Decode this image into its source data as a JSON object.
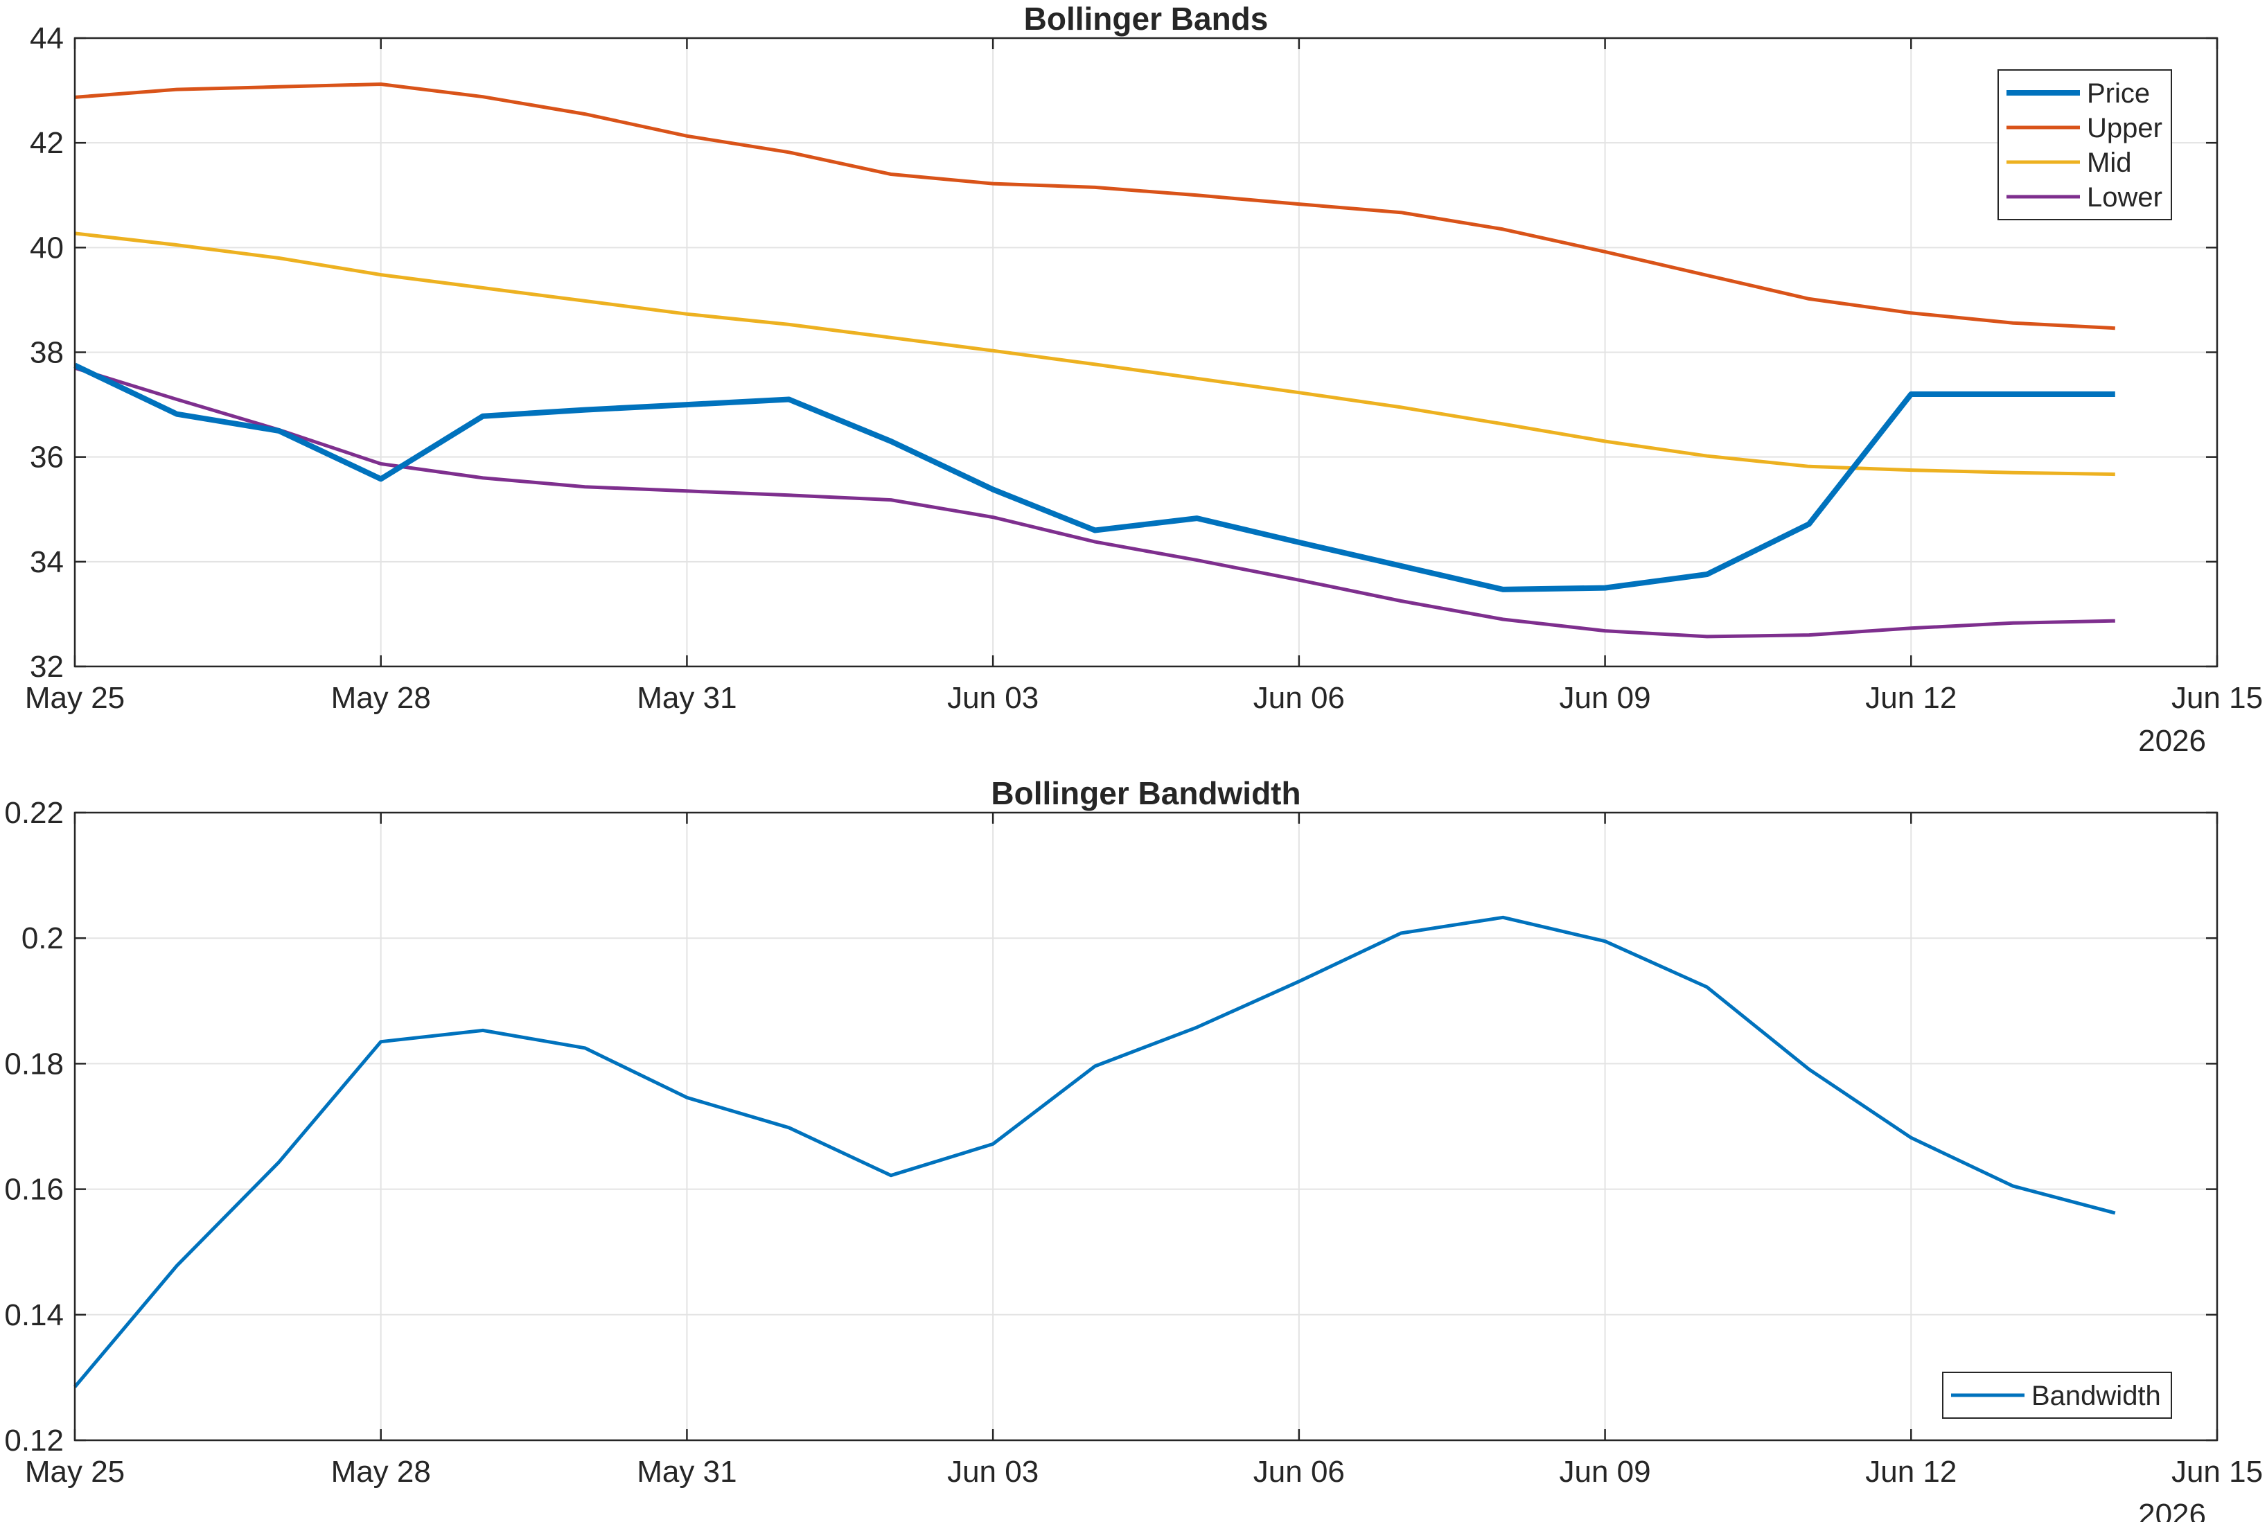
{
  "chart_data": [
    {
      "type": "line",
      "title": "Bollinger Bands",
      "xlabel": "",
      "ylabel": "",
      "x": [
        "May 25",
        "May 26",
        "May 27",
        "May 28",
        "May 29",
        "May 30",
        "May 31",
        "Jun 01",
        "Jun 02",
        "Jun 03",
        "Jun 04",
        "Jun 05",
        "Jun 06",
        "Jun 07",
        "Jun 08",
        "Jun 09",
        "Jun 10",
        "Jun 11",
        "Jun 12",
        "Jun 13",
        "Jun 14"
      ],
      "xlim": [
        "May 25",
        "Jun 15"
      ],
      "xticks": [
        "May 25",
        "May 28",
        "May 31",
        "Jun 03",
        "Jun 06",
        "Jun 09",
        "Jun 12",
        "Jun 15"
      ],
      "year_label": "2026",
      "ylim": [
        32,
        44
      ],
      "yticks": [
        "32",
        "34",
        "36",
        "38",
        "40",
        "42",
        "44"
      ],
      "grid": true,
      "legend_position": "top-right",
      "series": [
        {
          "name": "Price",
          "color": "#0072BD",
          "values": [
            37.75,
            36.82,
            36.5,
            35.58,
            36.78,
            36.9,
            37.0,
            37.1,
            36.3,
            35.38,
            34.6,
            34.83,
            34.37,
            33.92,
            33.47,
            33.5,
            33.76,
            34.72,
            37.2,
            37.2,
            37.2
          ]
        },
        {
          "name": "Upper",
          "color": "#D95319",
          "values": [
            42.87,
            43.02,
            43.07,
            43.12,
            42.88,
            42.55,
            42.13,
            41.82,
            41.4,
            41.22,
            41.15,
            41.0,
            40.83,
            40.67,
            40.35,
            39.92,
            39.47,
            39.02,
            38.75,
            38.56,
            38.46
          ]
        },
        {
          "name": "Mid",
          "color": "#EDB120",
          "values": [
            40.27,
            40.05,
            39.8,
            39.48,
            39.23,
            38.98,
            38.73,
            38.53,
            38.28,
            38.03,
            37.77,
            37.5,
            37.23,
            36.95,
            36.63,
            36.3,
            36.02,
            35.82,
            35.75,
            35.7,
            35.67
          ]
        },
        {
          "name": "Lower",
          "color": "#7E2F8E",
          "values": [
            37.7,
            37.1,
            36.52,
            35.87,
            35.6,
            35.43,
            35.35,
            35.27,
            35.18,
            34.85,
            34.38,
            34.03,
            33.65,
            33.25,
            32.9,
            32.68,
            32.57,
            32.6,
            32.73,
            32.83,
            32.87
          ]
        }
      ]
    },
    {
      "type": "line",
      "title": "Bollinger Bandwidth",
      "xlabel": "",
      "ylabel": "",
      "x": [
        "May 25",
        "May 26",
        "May 27",
        "May 28",
        "May 29",
        "May 30",
        "May 31",
        "Jun 01",
        "Jun 02",
        "Jun 03",
        "Jun 04",
        "Jun 05",
        "Jun 06",
        "Jun 07",
        "Jun 08",
        "Jun 09",
        "Jun 10",
        "Jun 11",
        "Jun 12",
        "Jun 13",
        "Jun 14"
      ],
      "xlim": [
        "May 25",
        "Jun 15"
      ],
      "xticks": [
        "May 25",
        "May 28",
        "May 31",
        "Jun 03",
        "Jun 06",
        "Jun 09",
        "Jun 12",
        "Jun 15"
      ],
      "year_label": "2026",
      "ylim": [
        0.12,
        0.22
      ],
      "yticks": [
        "0.12",
        "0.14",
        "0.16",
        "0.18",
        "0.2",
        "0.22"
      ],
      "grid": true,
      "legend_position": "bottom-right",
      "series": [
        {
          "name": "Bandwidth",
          "color": "#0072BD",
          "values": [
            0.1285,
            0.1478,
            0.1643,
            0.1835,
            0.1853,
            0.1825,
            0.1746,
            0.1698,
            0.1622,
            0.1672,
            0.1796,
            0.1858,
            0.1931,
            0.2008,
            0.2033,
            0.1995,
            0.1922,
            0.1791,
            0.1682,
            0.1605,
            0.1562
          ]
        }
      ]
    }
  ]
}
